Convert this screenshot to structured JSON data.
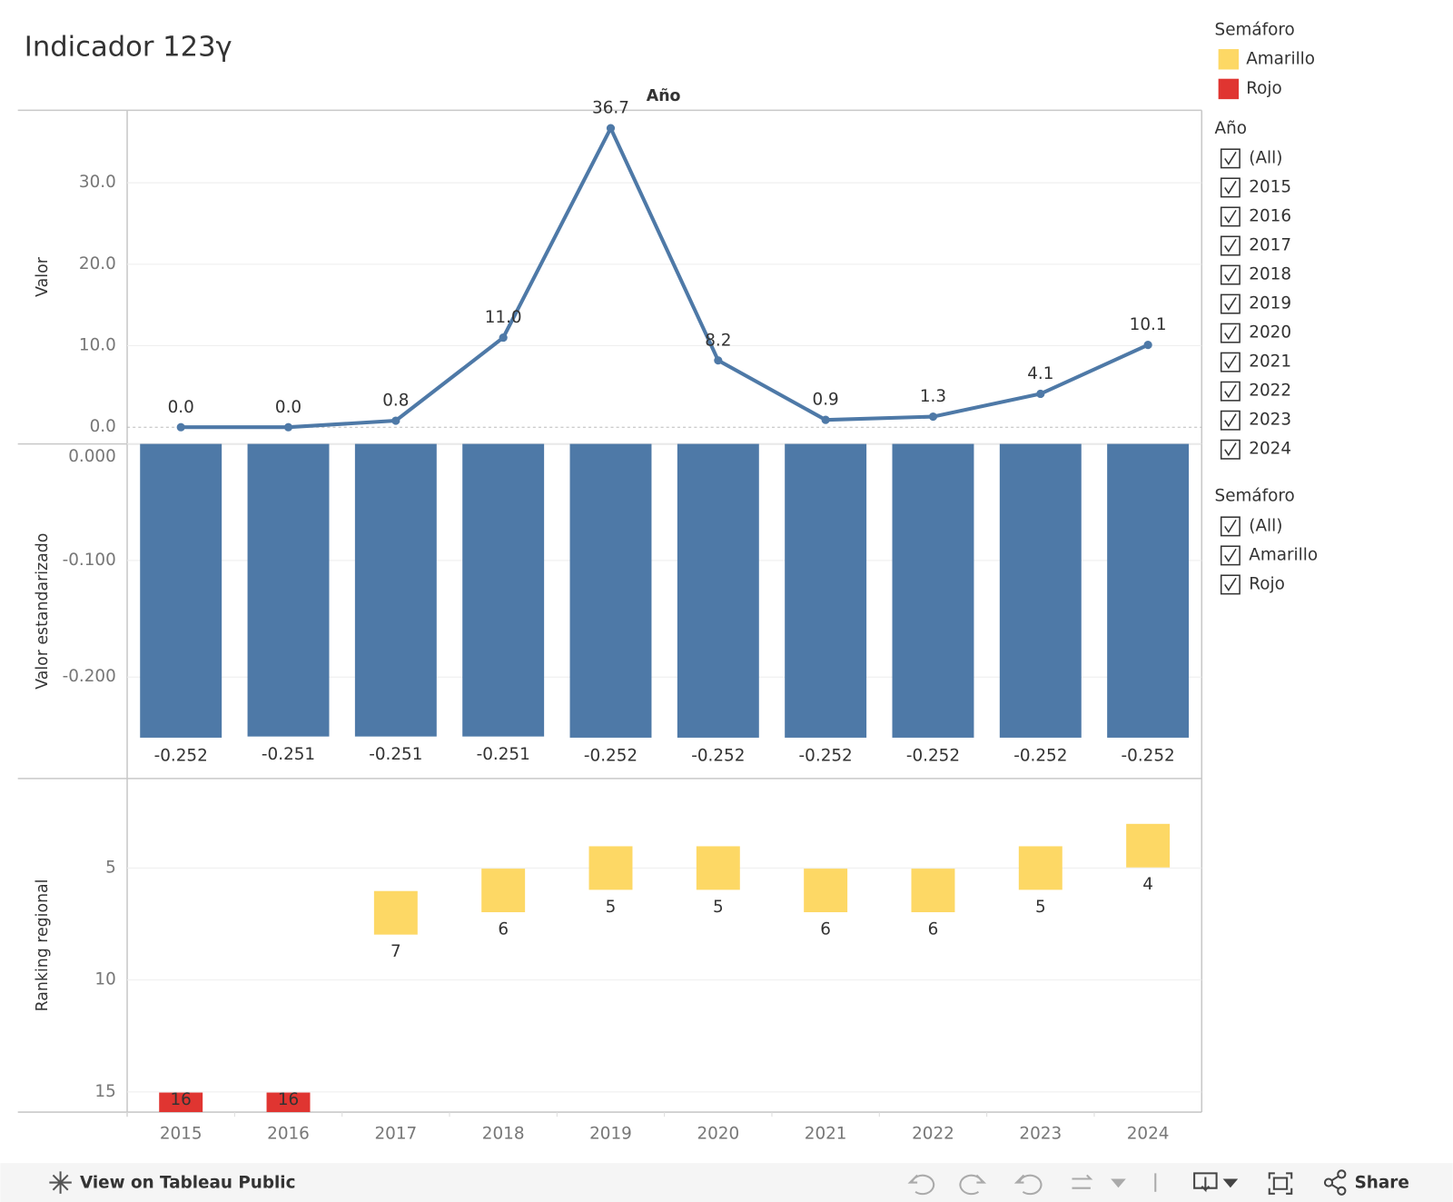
{
  "title": "Indicador 123γ",
  "chart_data": [
    {
      "type": "line",
      "header": "Año",
      "y_label": "Valor",
      "values": [
        0.0,
        0.0,
        0.8,
        11.0,
        36.7,
        8.2,
        0.9,
        1.3,
        4.1,
        10.1
      ],
      "value_labels": [
        "0.0",
        "0.0",
        "0.8",
        "11.0",
        "36.7",
        "8.2",
        "0.9",
        "1.3",
        "4.1",
        "10.1"
      ],
      "color": "#4e79a7",
      "ylim": [
        -2.05,
        38.9
      ],
      "yticks": [
        {
          "value": 0,
          "label": "0.0"
        },
        {
          "value": 10,
          "label": "10.0"
        },
        {
          "value": 20,
          "label": "20.0"
        },
        {
          "value": 30,
          "label": "30.0"
        }
      ],
      "grid": true
    },
    {
      "type": "bar",
      "y_label": "Valor estandarizado",
      "values": [
        -0.252,
        -0.251,
        -0.251,
        -0.251,
        -0.252,
        -0.252,
        -0.252,
        -0.252,
        -0.252,
        -0.252
      ],
      "color": "#4e79a7",
      "ylim": [
        -0.287,
        0
      ],
      "yticks": [
        {
          "value": 0,
          "label": "0.000"
        },
        {
          "value": -0.1,
          "label": "-0.100"
        },
        {
          "value": -0.2,
          "label": "-0.200"
        }
      ],
      "grid": true
    },
    {
      "type": "square",
      "y_label": "Ranking regional",
      "legend_title": "Semáforo",
      "categories": [
        "2015",
        "2016",
        "2017",
        "2018",
        "2019",
        "2020",
        "2021",
        "2022",
        "2023",
        "2024"
      ],
      "series": [
        {
          "name": "Amarillo",
          "color": "#fdd865",
          "values": [
            null,
            null,
            7,
            6,
            5,
            5,
            6,
            6,
            5,
            4
          ]
        },
        {
          "name": "Rojo",
          "color": "#e03531",
          "values": [
            16,
            16,
            null,
            null,
            null,
            null,
            null,
            null,
            null,
            null
          ]
        }
      ],
      "ylim": [
        1.0,
        15.9
      ],
      "reversed": true,
      "yticks": [
        5,
        10,
        15
      ],
      "grid": true
    }
  ],
  "filters": [
    {
      "title": "Año",
      "items": [
        "(All)",
        "2015",
        "2016",
        "2017",
        "2018",
        "2019",
        "2020",
        "2021",
        "2022",
        "2023",
        "2024"
      ]
    },
    {
      "title": "Semáforo",
      "items": [
        "(All)",
        "Amarillo",
        "Rojo"
      ]
    }
  ],
  "toolbar": {
    "view": "View on Tableau Public",
    "share": "Share"
  }
}
